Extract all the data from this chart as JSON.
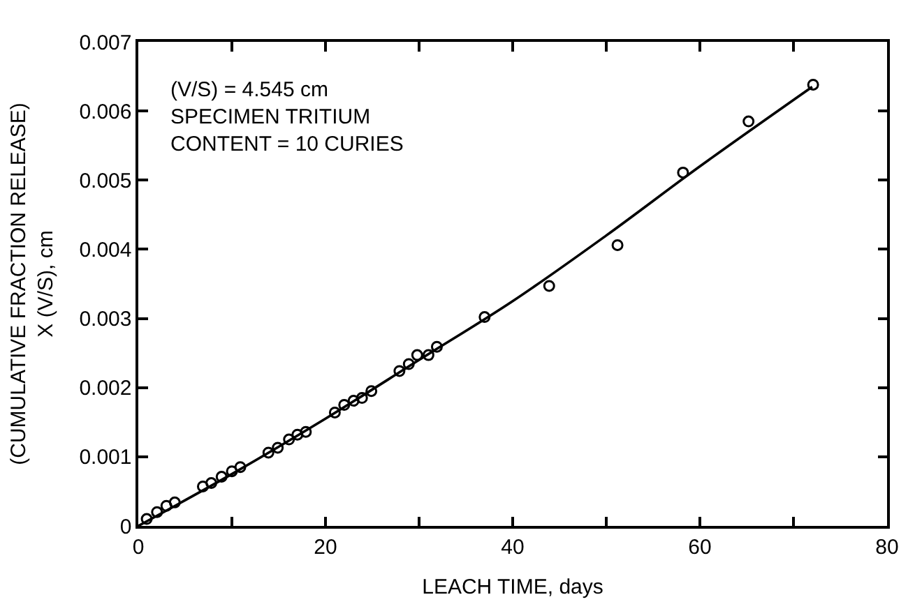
{
  "chart_data": {
    "type": "scatter",
    "xlabel": "LEACH TIME, days",
    "ylabel": "(CUMULATIVE FRACTION RELEASE)\nX (V/S), cm",
    "annotations": [
      "(V/S) = 4.545 cm\nSPECIMEN TRITIUM\nCONTENT = 10 CURIES"
    ],
    "xlim": [
      0,
      80
    ],
    "ylim": [
      0,
      0.007
    ],
    "xticks": [
      0,
      {
        "value": 10,
        "label": null
      },
      20,
      {
        "value": 30,
        "label": null
      },
      40,
      {
        "value": 50,
        "label": null
      },
      60,
      {
        "value": 70,
        "label": null
      },
      80
    ],
    "yticks": [
      0,
      0.001,
      0.002,
      0.003,
      0.004,
      0.005,
      0.006,
      0.007
    ],
    "series": [
      {
        "marker": "circle",
        "color": "#000000",
        "x": [
          0.9,
          2.0,
          3.0,
          3.9,
          6.9,
          7.8,
          8.9,
          10.0,
          10.9,
          13.9,
          14.9,
          16.1,
          17.0,
          17.9,
          21.0,
          22.0,
          23.0,
          23.9,
          24.9,
          27.9,
          28.9,
          29.8,
          31.0,
          31.9,
          37.0,
          43.9,
          51.2,
          58.2,
          65.2,
          72.1
        ],
        "values": [
          0.0001,
          0.0002,
          0.00029,
          0.00034,
          0.00057,
          0.00062,
          0.00071,
          0.00079,
          0.00085,
          0.00106,
          0.00113,
          0.00125,
          0.00132,
          0.00136,
          0.00164,
          0.00175,
          0.00181,
          0.00185,
          0.00195,
          0.00224,
          0.00234,
          0.00247,
          0.00247,
          0.00259,
          0.00302,
          0.00347,
          0.00406,
          0.00511,
          0.00585,
          0.00638
        ]
      },
      {
        "type": "line",
        "marker": "none",
        "line_style": "solid",
        "color": "#000000",
        "x": [
          0,
          10,
          20,
          30,
          40,
          50,
          60,
          72
        ],
        "values": [
          0,
          0.00075,
          0.00155,
          0.0024,
          0.00325,
          0.0042,
          0.0052,
          0.00635
        ]
      }
    ]
  }
}
